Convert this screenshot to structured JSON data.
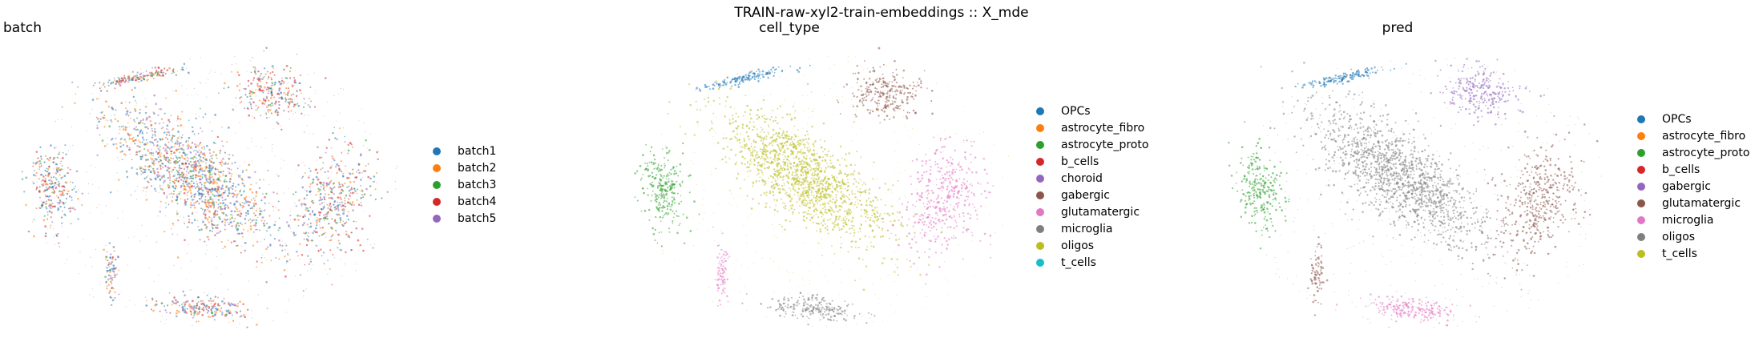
{
  "suptitle": "TRAIN-raw-xyl2-train-embeddings :: X_mde",
  "palette": {
    "blue": "#1f77b4",
    "orange": "#ff7f0e",
    "green": "#2ca02c",
    "red": "#d62728",
    "purple": "#9467bd",
    "brown": "#8c564b",
    "pink": "#e377c2",
    "gray": "#7f7f7f",
    "olive": "#bcbd22",
    "cyan": "#17becf"
  },
  "chart_data": [
    {
      "type": "scatter",
      "title": "batch",
      "legend_position": "right",
      "grid": false,
      "axes_visible": false,
      "categories": [
        "batch1",
        "batch2",
        "batch3",
        "batch4",
        "batch5"
      ],
      "colors": [
        "#1f77b4",
        "#ff7f0e",
        "#2ca02c",
        "#d62728",
        "#9467bd"
      ],
      "clusters": [
        {
          "name": "main",
          "mix": [
            0.3,
            0.3,
            0.1,
            0.1,
            0.2
          ]
        },
        {
          "name": "top-strip",
          "mix": [
            0.2,
            0.2,
            0.1,
            0.4,
            0.1
          ]
        },
        {
          "name": "top-right-cluster",
          "mix": [
            0.2,
            0.2,
            0.1,
            0.4,
            0.1
          ]
        },
        {
          "name": "right-cluster",
          "mix": [
            0.3,
            0.2,
            0.1,
            0.3,
            0.1
          ]
        },
        {
          "name": "left-cluster",
          "mix": [
            0.3,
            0.2,
            0.1,
            0.3,
            0.1
          ]
        },
        {
          "name": "bottom-cluster",
          "mix": [
            0.3,
            0.2,
            0.1,
            0.2,
            0.2
          ]
        },
        {
          "name": "bottom-small",
          "mix": [
            0.3,
            0.2,
            0.1,
            0.1,
            0.3
          ]
        }
      ]
    },
    {
      "type": "scatter",
      "title": "cell_type",
      "legend_position": "right",
      "grid": false,
      "axes_visible": false,
      "categories": [
        "OPCs",
        "astrocyte_fibro",
        "astrocyte_proto",
        "b_cells",
        "choroid",
        "gabergic",
        "glutamatergic",
        "microglia",
        "oligos",
        "t_cells"
      ],
      "colors": [
        "#1f77b4",
        "#ff7f0e",
        "#2ca02c",
        "#d62728",
        "#9467bd",
        "#8c564b",
        "#e377c2",
        "#7f7f7f",
        "#bcbd22",
        "#17becf"
      ],
      "clusters": [
        {
          "name": "main",
          "label": "oligos"
        },
        {
          "name": "top-strip",
          "label": "OPCs"
        },
        {
          "name": "top-right-cluster",
          "label": "gabergic"
        },
        {
          "name": "right-cluster",
          "label": "glutamatergic"
        },
        {
          "name": "left-cluster",
          "label": "astrocyte_proto"
        },
        {
          "name": "bottom-cluster",
          "label": "microglia"
        },
        {
          "name": "bottom-small",
          "label": "glutamatergic"
        }
      ]
    },
    {
      "type": "scatter",
      "title": "pred",
      "legend_position": "right",
      "grid": false,
      "axes_visible": false,
      "categories": [
        "OPCs",
        "astrocyte_fibro",
        "astrocyte_proto",
        "b_cells",
        "gabergic",
        "glutamatergic",
        "microglia",
        "oligos",
        "t_cells"
      ],
      "colors": [
        "#1f77b4",
        "#ff7f0e",
        "#2ca02c",
        "#d62728",
        "#9467bd",
        "#8c564b",
        "#e377c2",
        "#7f7f7f",
        "#bcbd22"
      ],
      "clusters": [
        {
          "name": "main",
          "label": "oligos"
        },
        {
          "name": "top-strip",
          "label": "OPCs"
        },
        {
          "name": "top-right-cluster",
          "label": "gabergic"
        },
        {
          "name": "right-cluster",
          "label": "glutamatergic"
        },
        {
          "name": "left-cluster",
          "label": "astrocyte_proto"
        },
        {
          "name": "bottom-cluster",
          "label": "microglia"
        },
        {
          "name": "bottom-small",
          "label": "glutamatergic"
        }
      ]
    }
  ]
}
